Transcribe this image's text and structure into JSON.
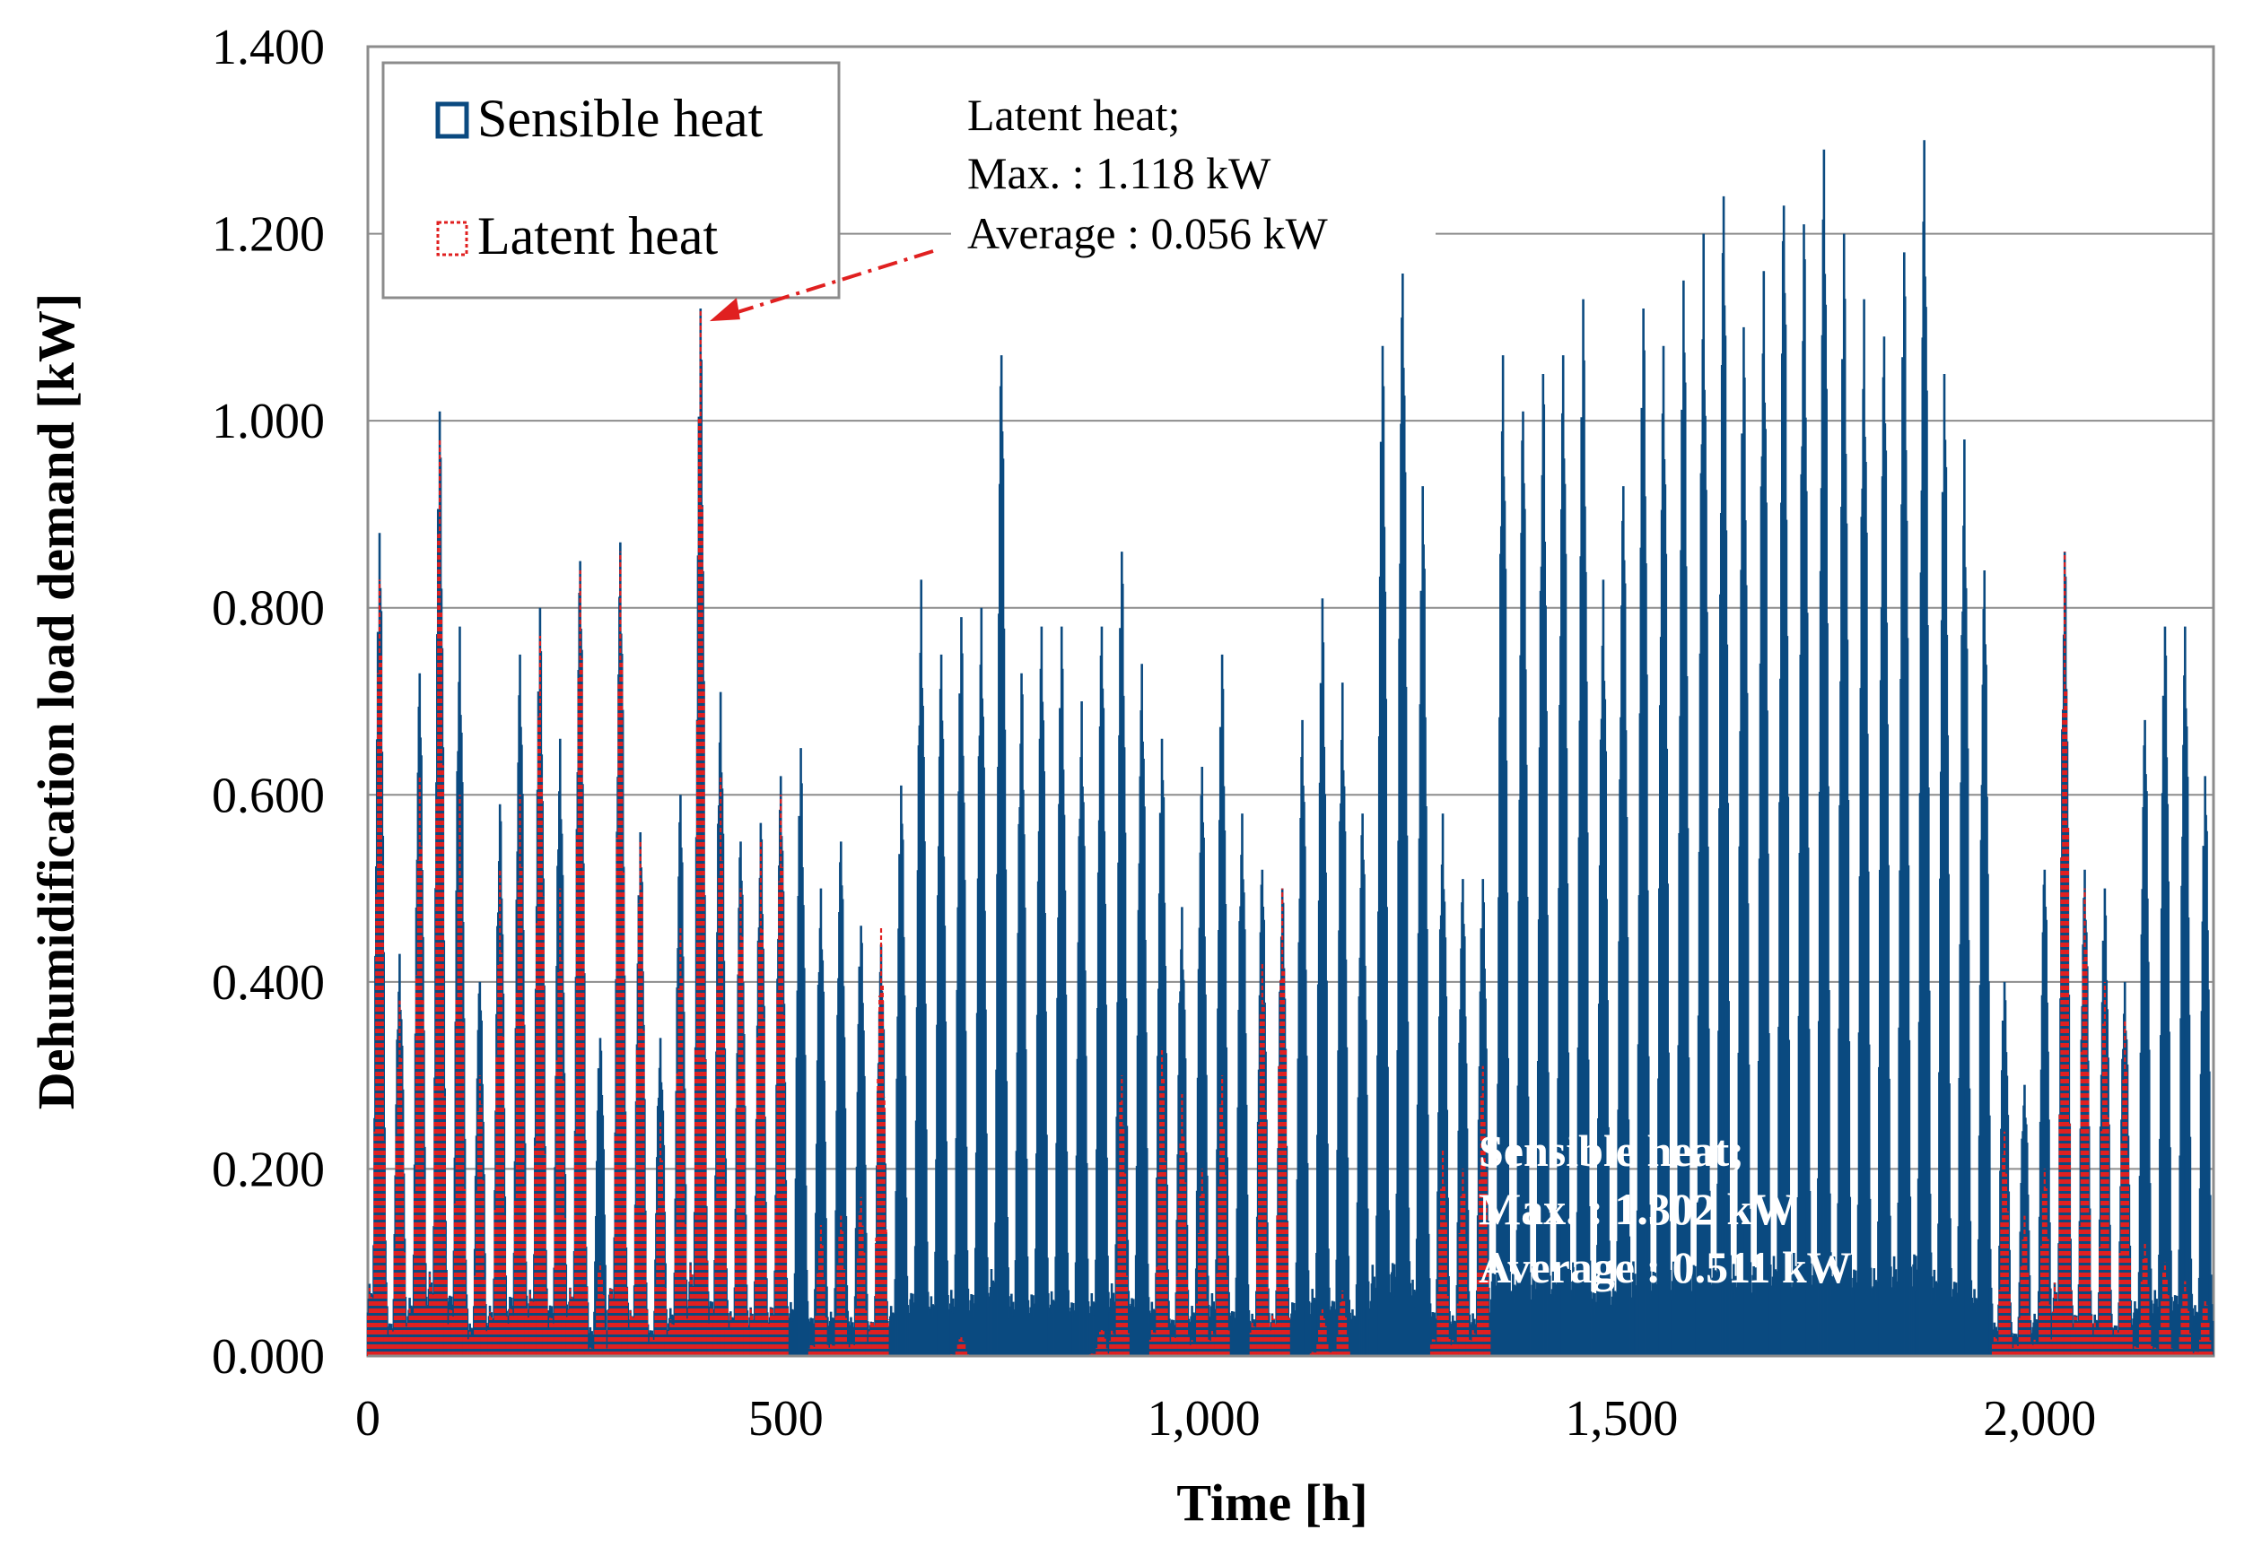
{
  "chart_data": {
    "type": "bar",
    "xlabel": "Time [h]",
    "ylabel": "Dehumidification load demand [kW]",
    "xlim": [
      0,
      2208
    ],
    "ylim": [
      0,
      1.4
    ],
    "x_tick_values": [
      0,
      500,
      1000,
      1500,
      2000
    ],
    "x_tick_labels": [
      "0",
      "500",
      "1,000",
      "1,500",
      "2,000"
    ],
    "y_tick_values": [
      0,
      0.2,
      0.4,
      0.6,
      0.8,
      1.0,
      1.2,
      1.4
    ],
    "y_tick_labels": [
      "0.000",
      "0.200",
      "0.400",
      "0.600",
      "0.800",
      "1.000",
      "1.200",
      "1.400"
    ],
    "grid": true,
    "legend": {
      "position": "top-left",
      "entries": [
        "Sensible heat",
        "Latent heat"
      ]
    },
    "series": [
      {
        "name": "Sensible heat",
        "color": "#0b4a80",
        "style": "solid",
        "stats": {
          "max_kw": 1.302,
          "average_kw": 0.511
        },
        "daily_peaks": [
          {
            "x": 12,
            "y": 0.88
          },
          {
            "x": 36,
            "y": 0.43
          },
          {
            "x": 60,
            "y": 0.73
          },
          {
            "x": 84,
            "y": 1.01
          },
          {
            "x": 108,
            "y": 0.78
          },
          {
            "x": 132,
            "y": 0.4
          },
          {
            "x": 156,
            "y": 0.59
          },
          {
            "x": 180,
            "y": 0.75
          },
          {
            "x": 204,
            "y": 0.8
          },
          {
            "x": 228,
            "y": 0.66
          },
          {
            "x": 252,
            "y": 0.85
          },
          {
            "x": 276,
            "y": 0.34
          },
          {
            "x": 300,
            "y": 0.87
          },
          {
            "x": 324,
            "y": 0.56
          },
          {
            "x": 348,
            "y": 0.34
          },
          {
            "x": 372,
            "y": 0.6
          },
          {
            "x": 396,
            "y": 1.12
          },
          {
            "x": 420,
            "y": 0.71
          },
          {
            "x": 444,
            "y": 0.55
          },
          {
            "x": 468,
            "y": 0.57
          },
          {
            "x": 492,
            "y": 0.62
          },
          {
            "x": 516,
            "y": 0.65
          },
          {
            "x": 540,
            "y": 0.5
          },
          {
            "x": 564,
            "y": 0.55
          },
          {
            "x": 588,
            "y": 0.46
          },
          {
            "x": 612,
            "y": 0.44
          },
          {
            "x": 636,
            "y": 0.61
          },
          {
            "x": 660,
            "y": 0.83
          },
          {
            "x": 684,
            "y": 0.75
          },
          {
            "x": 708,
            "y": 0.79
          },
          {
            "x": 732,
            "y": 0.8
          },
          {
            "x": 756,
            "y": 1.07
          },
          {
            "x": 780,
            "y": 0.73
          },
          {
            "x": 804,
            "y": 0.78
          },
          {
            "x": 828,
            "y": 0.78
          },
          {
            "x": 852,
            "y": 0.7
          },
          {
            "x": 876,
            "y": 0.78
          },
          {
            "x": 900,
            "y": 0.86
          },
          {
            "x": 924,
            "y": 0.74
          },
          {
            "x": 948,
            "y": 0.66
          },
          {
            "x": 972,
            "y": 0.48
          },
          {
            "x": 996,
            "y": 0.63
          },
          {
            "x": 1020,
            "y": 0.75
          },
          {
            "x": 1044,
            "y": 0.58
          },
          {
            "x": 1068,
            "y": 0.52
          },
          {
            "x": 1092,
            "y": 0.5
          },
          {
            "x": 1116,
            "y": 0.68
          },
          {
            "x": 1140,
            "y": 0.81
          },
          {
            "x": 1164,
            "y": 0.72
          },
          {
            "x": 1188,
            "y": 0.58
          },
          {
            "x": 1212,
            "y": 1.08
          },
          {
            "x": 1236,
            "y": 1.19
          },
          {
            "x": 1260,
            "y": 0.93
          },
          {
            "x": 1284,
            "y": 0.58
          },
          {
            "x": 1308,
            "y": 0.51
          },
          {
            "x": 1332,
            "y": 0.51
          },
          {
            "x": 1356,
            "y": 1.07
          },
          {
            "x": 1380,
            "y": 1.01
          },
          {
            "x": 1404,
            "y": 1.05
          },
          {
            "x": 1428,
            "y": 1.07
          },
          {
            "x": 1452,
            "y": 1.13
          },
          {
            "x": 1476,
            "y": 0.83
          },
          {
            "x": 1500,
            "y": 0.93
          },
          {
            "x": 1524,
            "y": 1.12
          },
          {
            "x": 1548,
            "y": 1.08
          },
          {
            "x": 1572,
            "y": 1.15
          },
          {
            "x": 1596,
            "y": 1.2
          },
          {
            "x": 1620,
            "y": 1.24
          },
          {
            "x": 1644,
            "y": 1.1
          },
          {
            "x": 1668,
            "y": 1.16
          },
          {
            "x": 1692,
            "y": 1.23
          },
          {
            "x": 1716,
            "y": 1.21
          },
          {
            "x": 1740,
            "y": 1.29
          },
          {
            "x": 1764,
            "y": 1.2
          },
          {
            "x": 1788,
            "y": 1.13
          },
          {
            "x": 1812,
            "y": 1.09
          },
          {
            "x": 1836,
            "y": 1.18
          },
          {
            "x": 1860,
            "y": 1.3
          },
          {
            "x": 1884,
            "y": 1.05
          },
          {
            "x": 1908,
            "y": 0.98
          },
          {
            "x": 1932,
            "y": 0.84
          },
          {
            "x": 1956,
            "y": 0.4
          },
          {
            "x": 1980,
            "y": 0.29
          },
          {
            "x": 2004,
            "y": 0.52
          },
          {
            "x": 2028,
            "y": 0.86
          },
          {
            "x": 2052,
            "y": 0.52
          },
          {
            "x": 2076,
            "y": 0.5
          },
          {
            "x": 2100,
            "y": 0.4
          },
          {
            "x": 2124,
            "y": 0.68
          },
          {
            "x": 2148,
            "y": 0.78
          },
          {
            "x": 2172,
            "y": 0.78
          },
          {
            "x": 2196,
            "y": 0.62
          }
        ]
      },
      {
        "name": "Latent heat",
        "color": "#e02020",
        "style": "dotted",
        "stats": {
          "max_kw": 1.118,
          "average_kw": 0.056
        },
        "daily_peaks": [
          {
            "x": 12,
            "y": 0.83
          },
          {
            "x": 36,
            "y": 0.38
          },
          {
            "x": 60,
            "y": 0.62
          },
          {
            "x": 84,
            "y": 0.98
          },
          {
            "x": 108,
            "y": 0.6
          },
          {
            "x": 132,
            "y": 0.3
          },
          {
            "x": 156,
            "y": 0.52
          },
          {
            "x": 180,
            "y": 0.6
          },
          {
            "x": 204,
            "y": 0.77
          },
          {
            "x": 228,
            "y": 0.5
          },
          {
            "x": 252,
            "y": 0.84
          },
          {
            "x": 276,
            "y": 0.1
          },
          {
            "x": 300,
            "y": 0.86
          },
          {
            "x": 324,
            "y": 0.55
          },
          {
            "x": 348,
            "y": 0.25
          },
          {
            "x": 372,
            "y": 0.46
          },
          {
            "x": 396,
            "y": 1.118
          },
          {
            "x": 420,
            "y": 0.62
          },
          {
            "x": 444,
            "y": 0.5
          },
          {
            "x": 468,
            "y": 0.55
          },
          {
            "x": 492,
            "y": 0.6
          },
          {
            "x": 516,
            "y": 0.0
          },
          {
            "x": 540,
            "y": 0.14
          },
          {
            "x": 564,
            "y": 0.15
          },
          {
            "x": 588,
            "y": 0.17
          },
          {
            "x": 612,
            "y": 0.46
          },
          {
            "x": 636,
            "y": 0.0
          },
          {
            "x": 660,
            "y": 0.0
          },
          {
            "x": 684,
            "y": 0.0
          },
          {
            "x": 708,
            "y": 0.02
          },
          {
            "x": 732,
            "y": 0.0
          },
          {
            "x": 756,
            "y": 0.0
          },
          {
            "x": 780,
            "y": 0.0
          },
          {
            "x": 804,
            "y": 0.0
          },
          {
            "x": 828,
            "y": 0.0
          },
          {
            "x": 852,
            "y": 0.0
          },
          {
            "x": 876,
            "y": 0.03
          },
          {
            "x": 900,
            "y": 0.3
          },
          {
            "x": 924,
            "y": 0.0
          },
          {
            "x": 948,
            "y": 0.33
          },
          {
            "x": 972,
            "y": 0.28
          },
          {
            "x": 996,
            "y": 0.2
          },
          {
            "x": 1020,
            "y": 0.3
          },
          {
            "x": 1044,
            "y": 0.0
          },
          {
            "x": 1068,
            "y": 0.42
          },
          {
            "x": 1092,
            "y": 0.5
          },
          {
            "x": 1116,
            "y": 0.0
          },
          {
            "x": 1140,
            "y": 0.05
          },
          {
            "x": 1164,
            "y": 0.07
          },
          {
            "x": 1188,
            "y": 0.0
          },
          {
            "x": 1212,
            "y": 0.0
          },
          {
            "x": 1236,
            "y": 0.0
          },
          {
            "x": 1260,
            "y": 0.0
          },
          {
            "x": 1284,
            "y": 0.22
          },
          {
            "x": 1308,
            "y": 0.2
          },
          {
            "x": 1332,
            "y": 0.31
          },
          {
            "x": 1356,
            "y": 0.0
          },
          {
            "x": 1380,
            "y": 0.0
          },
          {
            "x": 1404,
            "y": 0.0
          },
          {
            "x": 1428,
            "y": 0.0
          },
          {
            "x": 1452,
            "y": 0.0
          },
          {
            "x": 1476,
            "y": 0.0
          },
          {
            "x": 1500,
            "y": 0.0
          },
          {
            "x": 1524,
            "y": 0.0
          },
          {
            "x": 1548,
            "y": 0.0
          },
          {
            "x": 1572,
            "y": 0.0
          },
          {
            "x": 1596,
            "y": 0.0
          },
          {
            "x": 1620,
            "y": 0.0
          },
          {
            "x": 1644,
            "y": 0.0
          },
          {
            "x": 1668,
            "y": 0.0
          },
          {
            "x": 1692,
            "y": 0.0
          },
          {
            "x": 1716,
            "y": 0.0
          },
          {
            "x": 1740,
            "y": 0.0
          },
          {
            "x": 1764,
            "y": 0.0
          },
          {
            "x": 1788,
            "y": 0.0
          },
          {
            "x": 1812,
            "y": 0.0
          },
          {
            "x": 1836,
            "y": 0.0
          },
          {
            "x": 1860,
            "y": 0.0
          },
          {
            "x": 1884,
            "y": 0.0
          },
          {
            "x": 1908,
            "y": 0.0
          },
          {
            "x": 1932,
            "y": 0.0
          },
          {
            "x": 1956,
            "y": 0.24
          },
          {
            "x": 1980,
            "y": 0.15
          },
          {
            "x": 2004,
            "y": 0.2
          },
          {
            "x": 2028,
            "y": 0.86
          },
          {
            "x": 2052,
            "y": 0.5
          },
          {
            "x": 2076,
            "y": 0.4
          },
          {
            "x": 2100,
            "y": 0.36
          },
          {
            "x": 2124,
            "y": 0.12
          },
          {
            "x": 2148,
            "y": 0.1
          },
          {
            "x": 2172,
            "y": 0.08
          },
          {
            "x": 2196,
            "y": 0.06
          }
        ]
      }
    ],
    "annotations": {
      "latent": [
        "Latent  heat;",
        "Max.  : 1.118 kW",
        "Average  : 0.056 kW"
      ],
      "latent_arrow_target": {
        "x": 396,
        "y": 1.118
      },
      "sensible": [
        "Sensible  heat;",
        "Max. : 1.302 kW",
        "Average : 0.511 kW"
      ]
    }
  }
}
